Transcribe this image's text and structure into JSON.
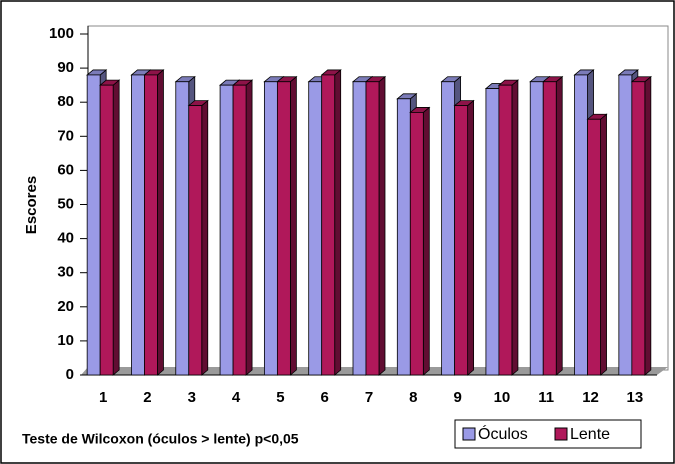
{
  "chart_data": {
    "type": "bar",
    "ylabel": "Escores",
    "annotation": "Teste de Wilcoxon (óculos > lente) p<0,05",
    "categories": [
      "1",
      "2",
      "3",
      "4",
      "5",
      "6",
      "7",
      "8",
      "9",
      "10",
      "11",
      "12",
      "13"
    ],
    "series": [
      {
        "name": "Óculos",
        "color": "#9a9ae6",
        "values": [
          88,
          88,
          86,
          85,
          86,
          86,
          86,
          81,
          86,
          84,
          86,
          88,
          88
        ]
      },
      {
        "name": "Lente",
        "color": "#b0185a",
        "values": [
          85,
          88,
          79,
          85,
          86,
          88,
          86,
          77,
          79,
          85,
          86,
          75,
          86
        ]
      }
    ],
    "ylim": [
      0,
      100
    ],
    "yticks": [
      0,
      10,
      20,
      30,
      40,
      50,
      60,
      70,
      80,
      90,
      100
    ],
    "grid": false,
    "legend": "bottom-right"
  }
}
